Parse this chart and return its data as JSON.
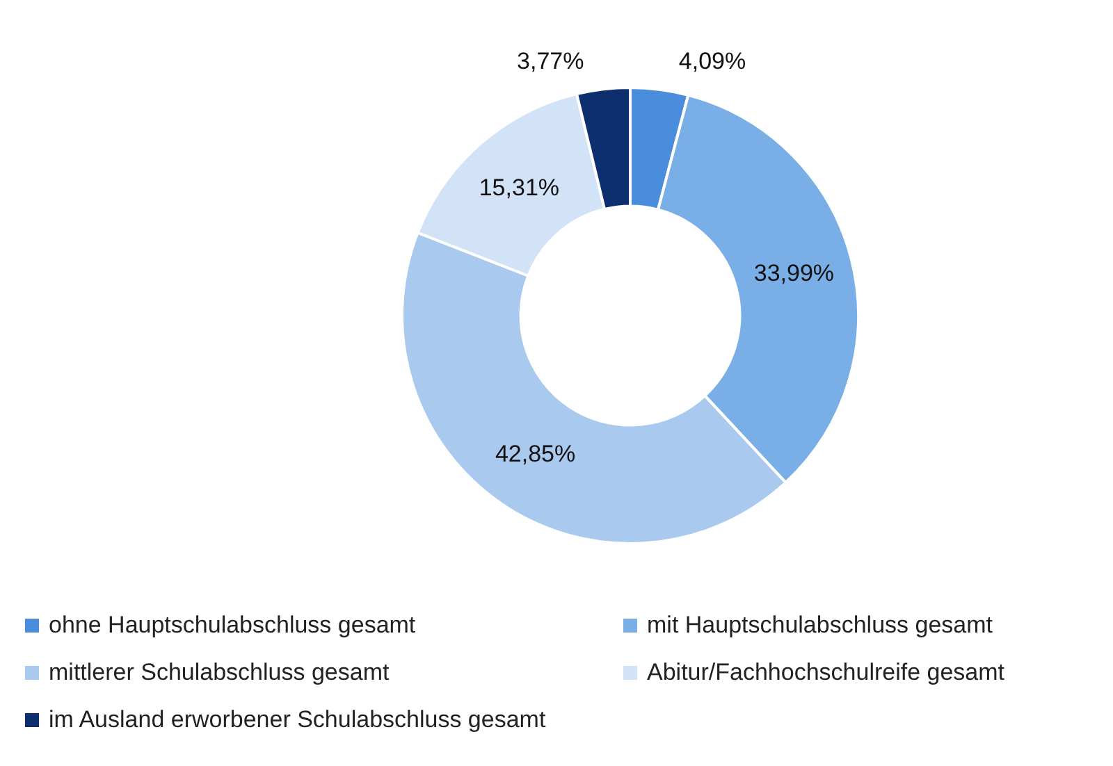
{
  "chart_data": {
    "type": "donut",
    "categories": [
      "ohne Hauptschulabschluss gesamt",
      "mit Hauptschulabschluss gesamt",
      "mittlerer Schulabschluss gesamt",
      "Abitur/Fachhochschulreife gesamt",
      "im Ausland erworbener Schulabschluss gesamt"
    ],
    "values": [
      4.09,
      33.99,
      42.85,
      15.31,
      3.77
    ],
    "value_labels": [
      "4,09%",
      "33,99%",
      "42,85%",
      "15,31%",
      "3,77%"
    ],
    "colors": [
      "#4a8ddc",
      "#7aaee6",
      "#a9c9ee",
      "#d2e3f7",
      "#0e2f6e"
    ],
    "legend": "bottom"
  }
}
